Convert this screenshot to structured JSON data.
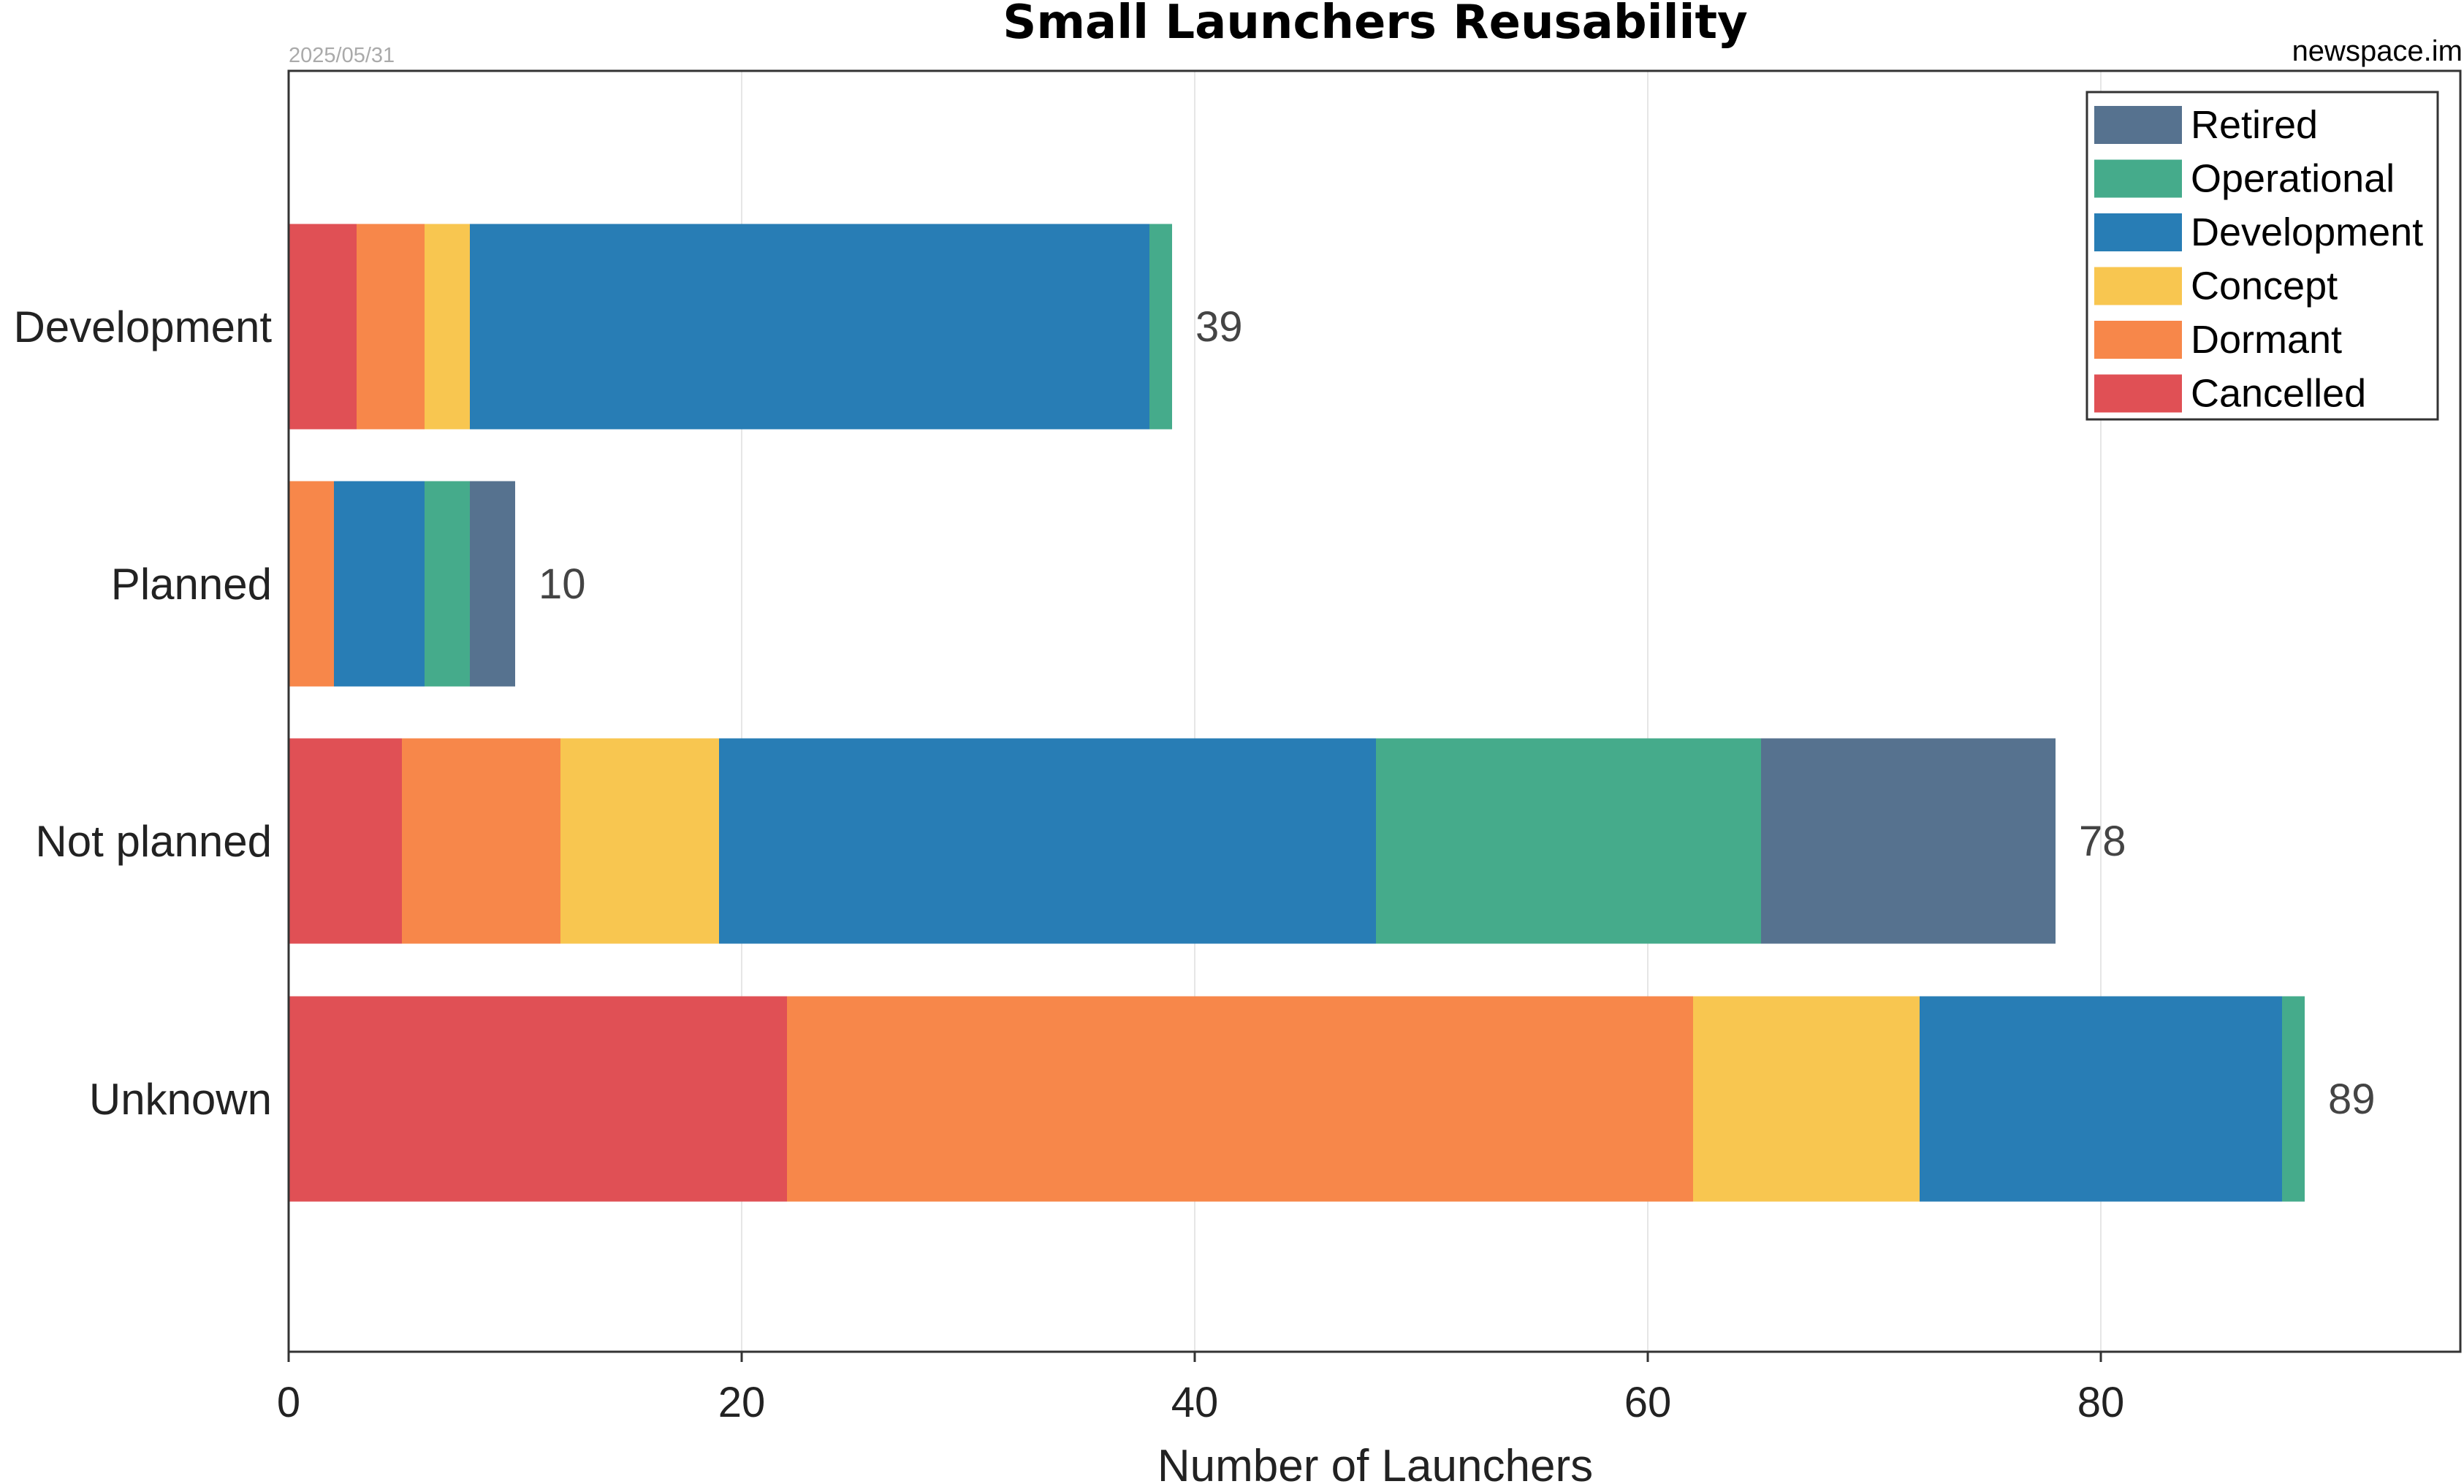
{
  "chart_data": {
    "type": "bar",
    "orientation": "horizontal",
    "stacked": true,
    "title": "Small Launchers Reusability",
    "date": "2025/05/31",
    "source": "newspace.im",
    "xlabel": "Number of Launchers",
    "ylabel": "",
    "xlim": [
      0,
      96
    ],
    "xticks": [
      0,
      20,
      40,
      60,
      80
    ],
    "grid": true,
    "legend_position": "top-right",
    "categories": [
      "Development",
      "Planned",
      "Not planned",
      "Unknown"
    ],
    "series": [
      {
        "name": "Cancelled",
        "color": "#e05055",
        "values": [
          3,
          0,
          5,
          22
        ]
      },
      {
        "name": "Dormant",
        "color": "#f7874a",
        "values": [
          3,
          2,
          7,
          40
        ]
      },
      {
        "name": "Concept",
        "color": "#f8c650",
        "values": [
          2,
          0,
          7,
          10
        ]
      },
      {
        "name": "Development",
        "color": "#287db5",
        "values": [
          30,
          4,
          29,
          16
        ]
      },
      {
        "name": "Operational",
        "color": "#45ab8b",
        "values": [
          1,
          2,
          17,
          1
        ]
      },
      {
        "name": "Retired",
        "color": "#56728f",
        "values": [
          0,
          2,
          13,
          0
        ]
      }
    ],
    "legend_order": [
      "Retired",
      "Operational",
      "Development",
      "Concept",
      "Dormant",
      "Cancelled"
    ],
    "totals": [
      39,
      10,
      78,
      89
    ]
  }
}
